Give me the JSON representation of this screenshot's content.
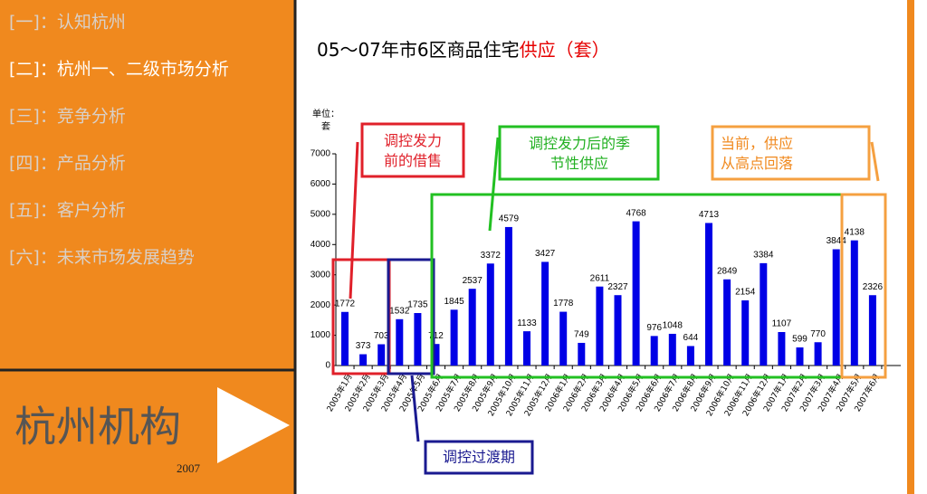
{
  "sidebar": {
    "items": [
      "[一]：认知杭州",
      "[二]：杭州一、二级市场分析",
      "[三]：竞争分析",
      "[四]：产品分析",
      "[五]：客户分析",
      "[六]：未来市场发展趋势"
    ],
    "brand": "杭州机构",
    "year": "2007"
  },
  "chart_data": {
    "type": "bar",
    "title": "05～07年市6区商品住宅",
    "title_highlight": "供应（套）",
    "y_label": [
      "单位：",
      "套"
    ],
    "categories": [
      "2005年1月",
      "2005年2月",
      "2005年3月",
      "2005年4月",
      "2005年5月",
      "2005年6月",
      "2005年7月",
      "2005年8月",
      "2005年9月",
      "2005年10月",
      "2005年11月",
      "2005年12月",
      "2006年1月",
      "2006年2月",
      "2006年3月",
      "2006年4月",
      "2006年5月",
      "2006年6月",
      "2006年7月",
      "2006年8月",
      "2006年9月",
      "2006年10月",
      "2006年11月",
      "2006年12月",
      "2007年1月",
      "2007年2月",
      "2007年3月",
      "2007年4月",
      "2007年5月",
      "2007年6月"
    ],
    "values": [
      1772,
      373,
      703,
      1532,
      1735,
      712,
      1845,
      2537,
      3372,
      4579,
      1133,
      3427,
      1778,
      749,
      2611,
      2327,
      4768,
      976,
      1048,
      644,
      4713,
      2849,
      2154,
      3384,
      1107,
      599,
      770,
      3844,
      4138,
      2326
    ],
    "color": "#0000e6",
    "ylim": [
      0,
      7000
    ],
    "yticks": [
      0,
      1000,
      2000,
      3000,
      4000,
      5000,
      6000,
      7000
    ],
    "annotations": [
      "调控发力前的借售",
      "调控发力后的季节性供应",
      "当前，供应从高点回落",
      "调控过渡期"
    ]
  }
}
